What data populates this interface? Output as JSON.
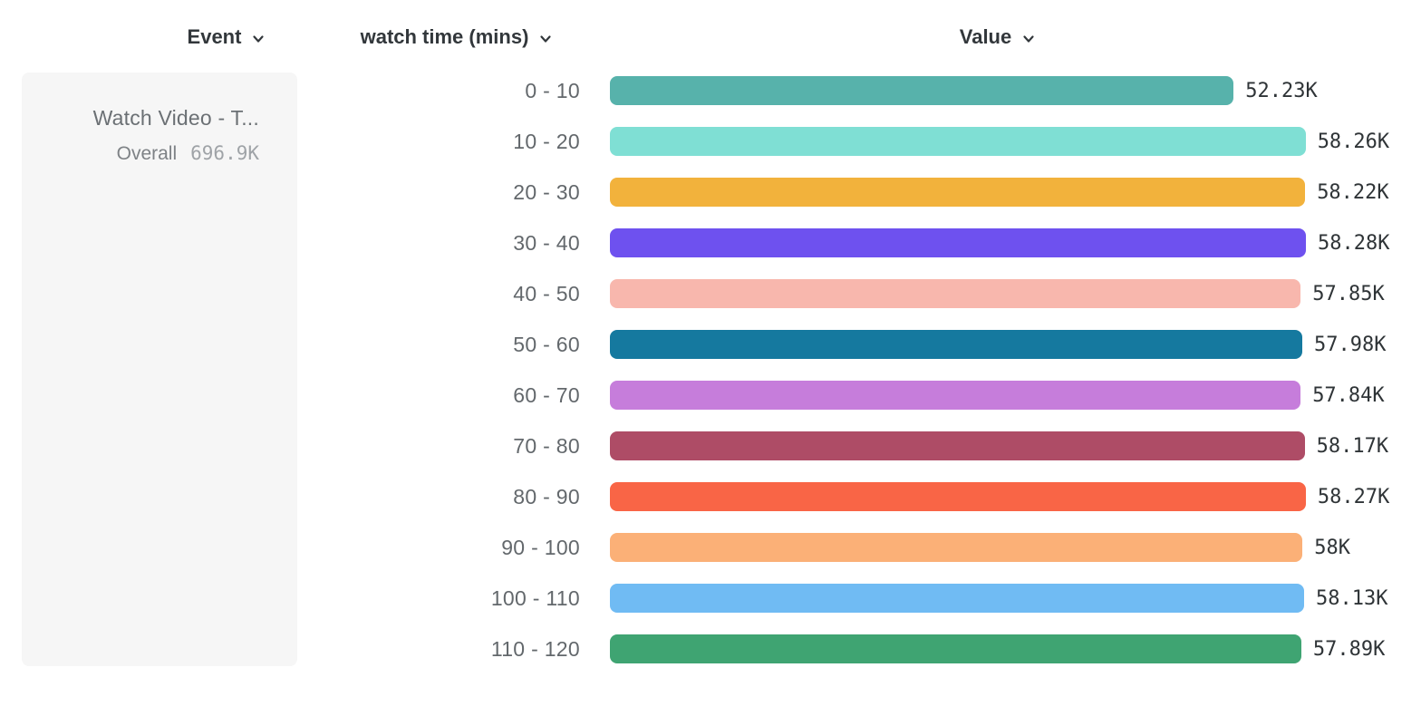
{
  "header": {
    "columns": [
      {
        "label": "Event",
        "icon": "chevron-down-icon"
      },
      {
        "label": "watch time (mins)",
        "icon": "chevron-down-icon"
      },
      {
        "label": "Value",
        "icon": "chevron-down-icon"
      }
    ]
  },
  "event_card": {
    "title": "Watch Video - T...",
    "overall_label": "Overall",
    "overall_value": "696.9K"
  },
  "colors": {
    "header_text": "#32373b",
    "category_text": "#63686c",
    "value_text": "#2f3437",
    "card_background": "#f6f6f6"
  },
  "chart_data": {
    "type": "bar",
    "orientation": "horizontal",
    "title": "",
    "xlabel": "Value",
    "ylabel": "watch time (mins)",
    "xlim": [
      0,
      58280
    ],
    "grid": false,
    "legend": "none",
    "series_name": "Watch Video - T...",
    "categories": [
      "0 - 10",
      "10 - 20",
      "20 - 30",
      "30 - 40",
      "40 - 50",
      "50 - 60",
      "60 - 70",
      "70 - 80",
      "80 - 90",
      "90 - 100",
      "100 - 110",
      "110 - 120"
    ],
    "values": [
      52230,
      58260,
      58220,
      58280,
      57850,
      57980,
      57840,
      58170,
      58270,
      58000,
      58130,
      57890
    ],
    "value_labels": [
      "52.23K",
      "58.26K",
      "58.22K",
      "58.28K",
      "57.85K",
      "57.98K",
      "57.84K",
      "58.17K",
      "58.27K",
      "58K",
      "58.13K",
      "57.89K"
    ],
    "bar_colors": [
      "#57B2AB",
      "#7FDFD4",
      "#F2B23C",
      "#6E51EF",
      "#F8B7AD",
      "#15799F",
      "#C67DDB",
      "#AE4C66",
      "#F96546",
      "#FBB077",
      "#70BBF3",
      "#3FA472"
    ]
  }
}
